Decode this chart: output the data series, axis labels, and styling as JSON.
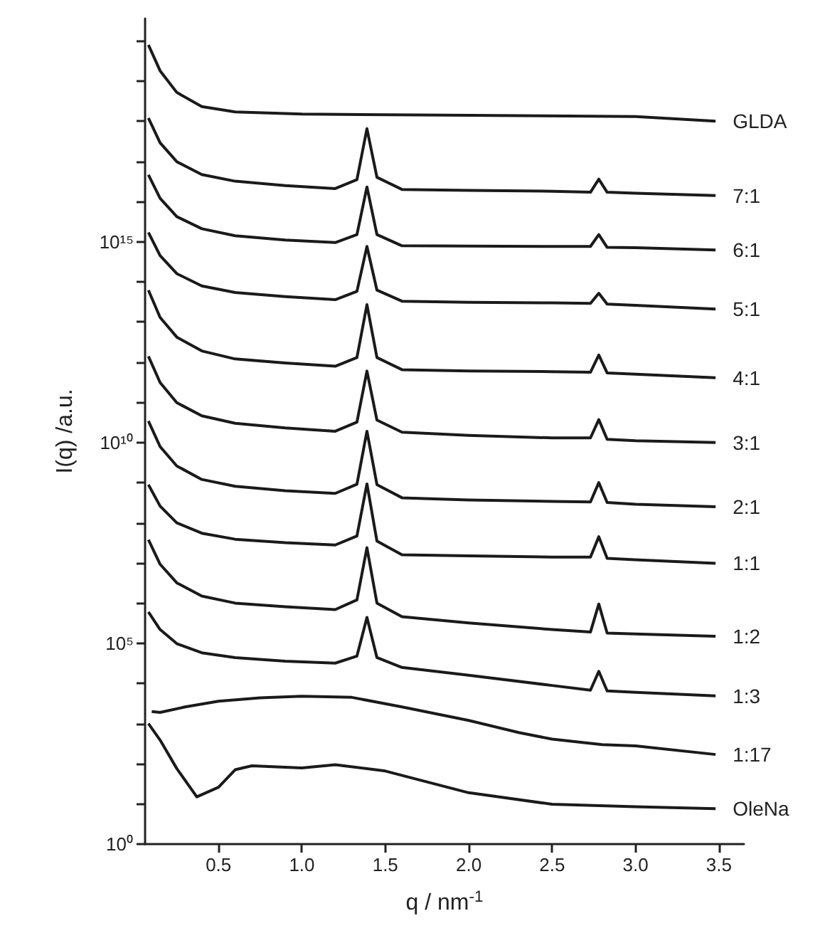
{
  "chart_data": {
    "type": "line",
    "xlabel": "q / nm$^{-1}$",
    "ylabel": "I(q) /a.u.",
    "log": "y",
    "grid": false,
    "legend": false,
    "xlim": [
      0.06,
      3.65
    ],
    "xticks": [
      0.5,
      {
        "value": 1,
        "label": "1.0"
      },
      1.5,
      {
        "value": 2,
        "label": "2.0"
      },
      2.5,
      {
        "value": 3,
        "label": "3.0"
      },
      3.5
    ],
    "ylim": [
      1,
      3.6e+20
    ],
    "yticks": [
      {
        "value": 1,
        "label": "10⁰"
      },
      {
        "value": 10.0,
        "label": null
      },
      {
        "value": 100.0,
        "label": null
      },
      {
        "value": 1000.0,
        "label": null
      },
      {
        "value": 10000.0,
        "label": null
      },
      {
        "value": 100000.0,
        "label": "10⁵"
      },
      {
        "value": 1000000.0,
        "label": null
      },
      {
        "value": 10000000.0,
        "label": null
      },
      {
        "value": 100000000.0,
        "label": null
      },
      {
        "value": 1000000000.0,
        "label": null
      },
      {
        "value": 10000000000.0,
        "label": "10¹⁰"
      },
      {
        "value": 100000000000.0,
        "label": null
      },
      {
        "value": 1000000000000.0,
        "label": null
      },
      {
        "value": 10000000000000.0,
        "label": null
      },
      {
        "value": 100000000000000.0,
        "label": null
      },
      {
        "value": 1000000000000000.0,
        "label": "10¹⁵"
      },
      {
        "value": 1e+16,
        "label": null
      },
      {
        "value": 1e+17,
        "label": null
      },
      {
        "value": 1e+18,
        "label": null
      },
      {
        "value": 1e+19,
        "label": null
      },
      {
        "value": 1e+20,
        "label": null
      }
    ],
    "series": [
      {
        "name": "GLDA",
        "color": "#1a1a1a",
        "x": [
          0.08,
          0.15,
          0.25,
          0.4,
          0.6,
          1.0,
          2.0,
          3.0,
          3.48
        ],
        "values": [
          7.9e+19,
          1.8e+19,
          5.2e+18,
          2.3e+18,
          1.7e+18,
          1.5e+18,
          1.4e+18,
          1.3e+18,
          1e+18
        ]
      },
      {
        "name": "7:1",
        "color": "#1a1a1a",
        "x": [
          0.08,
          0.15,
          0.25,
          0.4,
          0.6,
          0.9,
          1.2,
          1.33,
          1.39,
          1.45,
          1.6,
          2.0,
          2.5,
          2.73,
          2.78,
          2.83,
          3.0,
          3.48
        ],
        "values": [
          1.2e+18,
          2.9e+17,
          9.8e+16,
          4.7e+16,
          3.2e+16,
          2.5e+16,
          2.1e+16,
          3.5e+16,
          6.5e+17,
          4e+16,
          2e+16,
          1.9e+16,
          1.8e+16,
          1.7e+16,
          3.6e+16,
          1.7e+16,
          1.6e+16,
          1.4e+16
        ]
      },
      {
        "name": "6:1",
        "color": "#1a1a1a",
        "x": [
          0.08,
          0.15,
          0.25,
          0.4,
          0.6,
          0.9,
          1.2,
          1.33,
          1.39,
          1.45,
          1.6,
          2.0,
          2.5,
          2.73,
          2.78,
          2.83,
          3.0,
          3.48
        ],
        "values": [
          4.6e+16,
          1.2e+16,
          4200000000000000.0,
          2100000000000000.0,
          1400000000000000.0,
          1100000000000000.0,
          950000000000000.0,
          1500000000000000.0,
          2.3e+16,
          1500000000000000.0,
          790000000000000.0,
          780000000000000.0,
          760000000000000.0,
          760000000000000.0,
          1500000000000000.0,
          720000000000000.0,
          710000000000000.0,
          620000000000000.0
        ]
      },
      {
        "name": "5:1",
        "color": "#1a1a1a",
        "x": [
          0.08,
          0.15,
          0.25,
          0.4,
          0.6,
          0.9,
          1.2,
          1.33,
          1.39,
          1.45,
          1.6,
          2.0,
          2.5,
          2.73,
          2.78,
          2.83,
          3.0,
          3.48
        ],
        "values": [
          1700000000000000.0,
          450000000000000.0,
          160000000000000.0,
          79000000000000.0,
          54000000000000.0,
          43000000000000.0,
          36000000000000.0,
          58000000000000.0,
          760000000000000.0,
          62000000000000.0,
          33000000000000.0,
          31000000000000.0,
          30000000000000.0,
          29000000000000.0,
          52000000000000.0,
          28000000000000.0,
          26000000000000.0,
          21000000000000.0
        ]
      },
      {
        "name": "4:1",
        "color": "#1a1a1a",
        "x": [
          0.08,
          0.15,
          0.25,
          0.4,
          0.6,
          0.9,
          1.2,
          1.33,
          1.39,
          1.45,
          1.6,
          2.0,
          2.5,
          2.73,
          2.78,
          2.83,
          3.0,
          3.48
        ],
        "values": [
          62000000000000.0,
          13000000000000.0,
          4200000000000.0,
          1900000000000.0,
          1200000000000.0,
          950000000000.0,
          790000000000.0,
          1300000000000.0,
          27000000000000.0,
          1300000000000.0,
          650000000000.0,
          600000000000.0,
          580000000000.0,
          560000000000.0,
          1500000000000.0,
          540000000000.0,
          500000000000.0,
          410000000000.0
        ]
      },
      {
        "name": "3:1",
        "color": "#1a1a1a",
        "x": [
          0.08,
          0.15,
          0.25,
          0.4,
          0.6,
          0.9,
          1.2,
          1.33,
          1.39,
          1.45,
          1.6,
          2.0,
          2.5,
          2.73,
          2.78,
          2.83,
          3.0,
          3.48
        ],
        "values": [
          1400000000000.0,
          310000000000.0,
          98000000000.0,
          46000000000.0,
          30000000000.0,
          23000000000.0,
          19000000000.0,
          32000000000.0,
          600000000000.0,
          36000000000.0,
          18000000000.0,
          15000000000.0,
          13000000000.0,
          13000000000.0,
          37000000000.0,
          12000000000.0,
          11000000000.0,
          10000000000.0
        ]
      },
      {
        "name": "2:1",
        "color": "#1a1a1a",
        "x": [
          0.08,
          0.15,
          0.25,
          0.4,
          0.6,
          0.9,
          1.2,
          1.33,
          1.39,
          1.45,
          1.6,
          2.0,
          2.5,
          2.73,
          2.78,
          2.83,
          3.0,
          3.48
        ],
        "values": [
          34000000000.0,
          7900000000.0,
          2600000000.0,
          1200000000.0,
          810000000.0,
          630000000.0,
          540000000.0,
          910000000.0,
          19000000000.0,
          890000000.0,
          420000000.0,
          370000000.0,
          340000000.0,
          330000000.0,
          1000000000.0,
          320000000.0,
          290000000.0,
          250000000.0
        ]
      },
      {
        "name": "1:1",
        "color": "#1a1a1a",
        "x": [
          0.08,
          0.15,
          0.25,
          0.4,
          0.6,
          0.9,
          1.2,
          1.33,
          1.39,
          1.45,
          1.6,
          2.0,
          2.5,
          2.73,
          2.78,
          2.83,
          3.0,
          3.48
        ],
        "values": [
          890000000.0,
          260000000.0,
          100000000.0,
          55000000.0,
          39000000.0,
          32000000.0,
          28000000.0,
          47000000.0,
          930000000.0,
          35000000.0,
          16000000.0,
          15000000.0,
          14000000.0,
          14000000.0,
          45000000.0,
          13000000.0,
          12000000.0,
          9800000.0
        ]
      },
      {
        "name": "1:2",
        "color": "#1a1a1a",
        "x": [
          0.08,
          0.15,
          0.25,
          0.4,
          0.6,
          0.9,
          1.2,
          1.33,
          1.39,
          1.45,
          1.6,
          2.0,
          2.5,
          2.73,
          2.78,
          2.83,
          3.0,
          3.48
        ],
        "values": [
          38000000.0,
          9300000.0,
          3200000.0,
          1500000.0,
          1000000.0,
          810000.0,
          690000.0,
          1200000.0,
          24000000.0,
          1000000.0,
          460000.0,
          320000.0,
          220000.0,
          190000.0,
          950000.0,
          180000.0,
          170000.0,
          150000.0
        ]
      },
      {
        "name": "1:3",
        "color": "#1a1a1a",
        "x": [
          0.08,
          0.15,
          0.25,
          0.4,
          0.6,
          0.9,
          1.2,
          1.33,
          1.39,
          1.45,
          1.6,
          2.0,
          2.5,
          2.73,
          2.78,
          2.83,
          3.0,
          3.48
        ],
        "values": [
          600000.0,
          220000.0,
          98000.0,
          58000.0,
          44000.0,
          36000.0,
          32000.0,
          48000.0,
          440000.0,
          44000.0,
          25000.0,
          16000.0,
          8900.0,
          6800.0,
          20000.0,
          6500.0,
          6000.0,
          4900.0
        ]
      },
      {
        "name": "1:17",
        "color": "#1a1a1a",
        "x": [
          0.1,
          0.15,
          0.3,
          0.5,
          0.75,
          1.0,
          1.3,
          1.6,
          2.0,
          2.3,
          2.5,
          2.8,
          3.0,
          3.48
        ],
        "values": [
          2000.0,
          1900.0,
          2600.0,
          3600.0,
          4400.0,
          4800.0,
          4500.0,
          2600.0,
          1200.0,
          600.0,
          410.0,
          300.0,
          280.0,
          170.0
        ]
      },
      {
        "name": "OleNa",
        "color": "#1a1a1a",
        "x": [
          0.08,
          0.15,
          0.25,
          0.37,
          0.5,
          0.6,
          0.7,
          1.0,
          1.2,
          1.5,
          2.0,
          2.5,
          3.0,
          3.48
        ],
        "values": [
          1000.0,
          390.0,
          76,
          15,
          26,
          71,
          89,
          79,
          95,
          66,
          19,
          9.8,
          8.5,
          7.6
        ]
      }
    ]
  }
}
